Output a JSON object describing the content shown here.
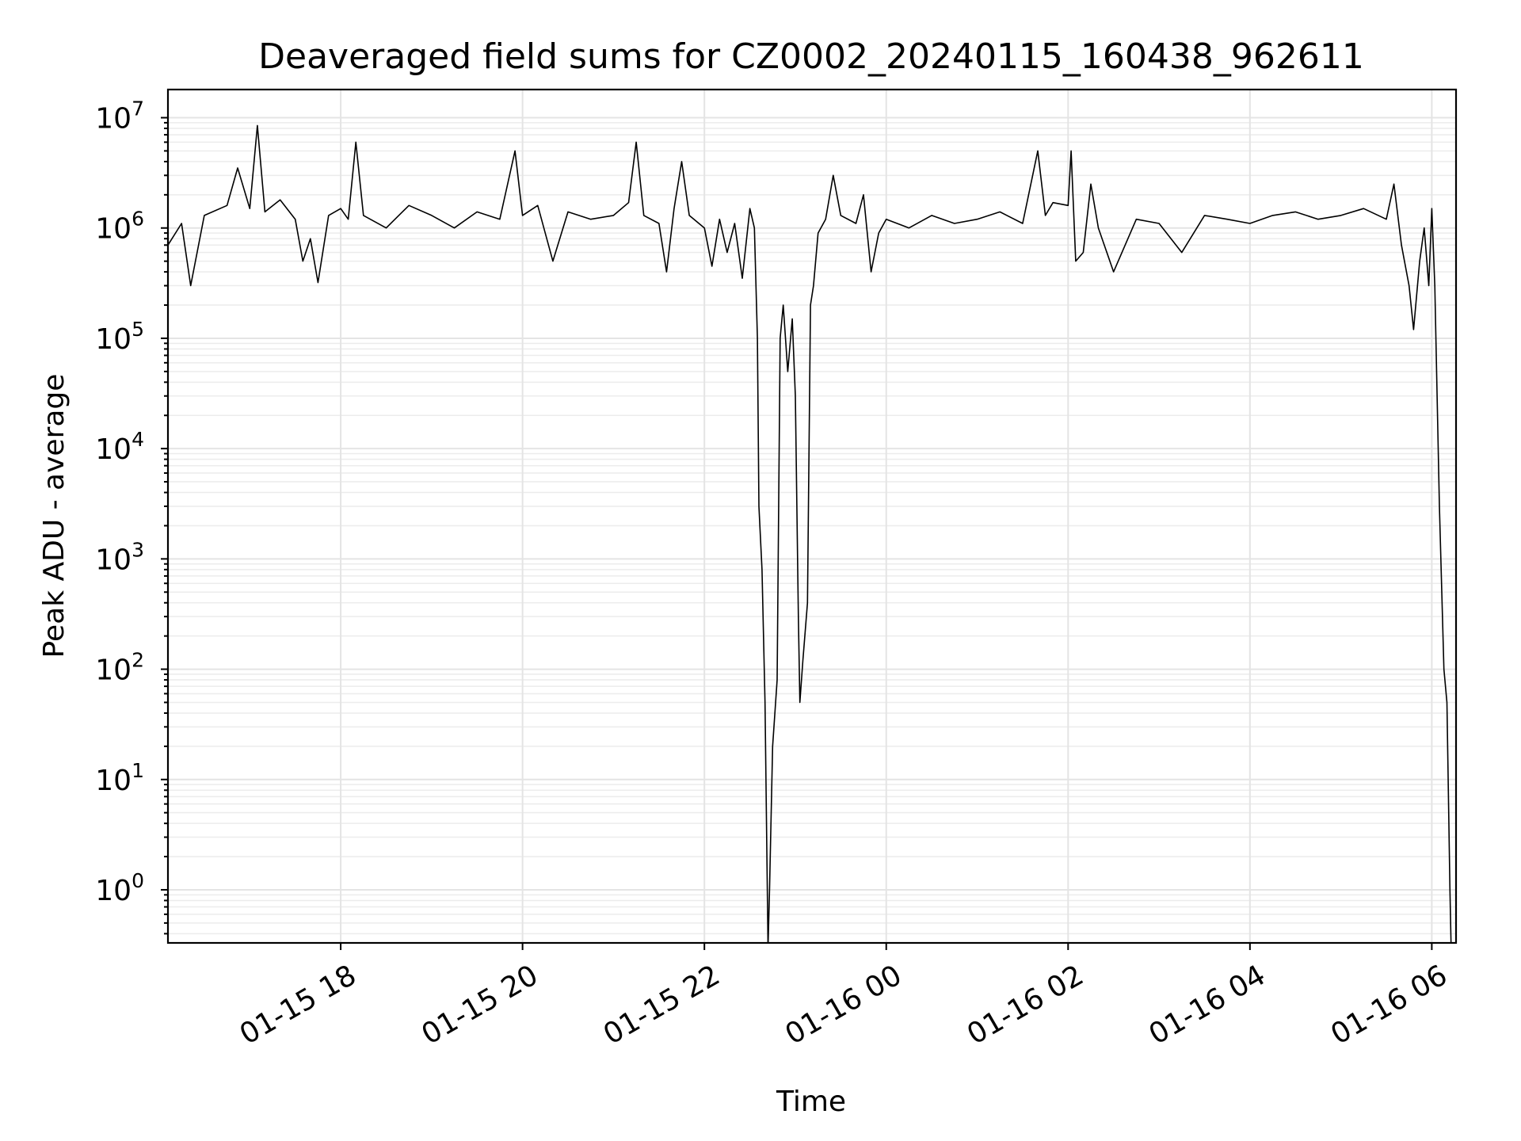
{
  "chart_data": {
    "type": "line",
    "title": "Deaveraged field sums for CZ0002_20240115_160438_962611",
    "xlabel": "Time",
    "ylabel": "Peak ADU - average",
    "yscale": "log",
    "xlim": [
      "2024-01-15 16:06",
      "2024-01-16 06:16"
    ],
    "ylim": [
      0.33,
      18000000
    ],
    "grid": true,
    "x_ticks": [
      {
        "t": "2024-01-15 18:00",
        "label": "01-15 18"
      },
      {
        "t": "2024-01-15 20:00",
        "label": "01-15 20"
      },
      {
        "t": "2024-01-15 22:00",
        "label": "01-15 22"
      },
      {
        "t": "2024-01-16 00:00",
        "label": "01-16 00"
      },
      {
        "t": "2024-01-16 02:00",
        "label": "01-16 02"
      },
      {
        "t": "2024-01-16 04:00",
        "label": "01-16 04"
      },
      {
        "t": "2024-01-16 06:00",
        "label": "01-16 06"
      }
    ],
    "y_ticks": [
      {
        "value": 1,
        "base": "10",
        "exp": "0"
      },
      {
        "value": 10,
        "base": "10",
        "exp": "1"
      },
      {
        "value": 100,
        "base": "10",
        "exp": "2"
      },
      {
        "value": 1000,
        "base": "10",
        "exp": "3"
      },
      {
        "value": 10000,
        "base": "10",
        "exp": "4"
      },
      {
        "value": 100000,
        "base": "10",
        "exp": "5"
      },
      {
        "value": 1000000,
        "base": "10",
        "exp": "6"
      },
      {
        "value": 10000000,
        "base": "10",
        "exp": "7"
      }
    ],
    "series": [
      {
        "color": "#000000",
        "points": [
          [
            "2024-01-15 16:06",
            700000
          ],
          [
            "2024-01-15 16:15",
            1100000
          ],
          [
            "2024-01-15 16:21",
            300000
          ],
          [
            "2024-01-15 16:30",
            1300000
          ],
          [
            "2024-01-15 16:45",
            1600000
          ],
          [
            "2024-01-15 16:52",
            3500000
          ],
          [
            "2024-01-15 17:00",
            1500000
          ],
          [
            "2024-01-15 17:05",
            8500000
          ],
          [
            "2024-01-15 17:10",
            1400000
          ],
          [
            "2024-01-15 17:20",
            1800000
          ],
          [
            "2024-01-15 17:30",
            1200000
          ],
          [
            "2024-01-15 17:35",
            500000
          ],
          [
            "2024-01-15 17:40",
            800000
          ],
          [
            "2024-01-15 17:45",
            320000
          ],
          [
            "2024-01-15 17:52",
            1300000
          ],
          [
            "2024-01-15 18:00",
            1500000
          ],
          [
            "2024-01-15 18:05",
            1200000
          ],
          [
            "2024-01-15 18:10",
            6000000
          ],
          [
            "2024-01-15 18:15",
            1300000
          ],
          [
            "2024-01-15 18:30",
            1000000
          ],
          [
            "2024-01-15 18:45",
            1600000
          ],
          [
            "2024-01-15 19:00",
            1300000
          ],
          [
            "2024-01-15 19:15",
            1000000
          ],
          [
            "2024-01-15 19:30",
            1400000
          ],
          [
            "2024-01-15 19:45",
            1200000
          ],
          [
            "2024-01-15 19:55",
            5000000
          ],
          [
            "2024-01-15 20:00",
            1300000
          ],
          [
            "2024-01-15 20:10",
            1600000
          ],
          [
            "2024-01-15 20:20",
            500000
          ],
          [
            "2024-01-15 20:30",
            1400000
          ],
          [
            "2024-01-15 20:45",
            1200000
          ],
          [
            "2024-01-15 21:00",
            1300000
          ],
          [
            "2024-01-15 21:10",
            1700000
          ],
          [
            "2024-01-15 21:15",
            6000000
          ],
          [
            "2024-01-15 21:20",
            1300000
          ],
          [
            "2024-01-15 21:30",
            1100000
          ],
          [
            "2024-01-15 21:35",
            400000
          ],
          [
            "2024-01-15 21:40",
            1500000
          ],
          [
            "2024-01-15 21:45",
            4000000
          ],
          [
            "2024-01-15 21:50",
            1300000
          ],
          [
            "2024-01-15 22:00",
            1000000
          ],
          [
            "2024-01-15 22:05",
            450000
          ],
          [
            "2024-01-15 22:10",
            1200000
          ],
          [
            "2024-01-15 22:15",
            600000
          ],
          [
            "2024-01-15 22:20",
            1100000
          ],
          [
            "2024-01-15 22:25",
            350000
          ],
          [
            "2024-01-15 22:30",
            1500000
          ],
          [
            "2024-01-15 22:33",
            1000000
          ],
          [
            "2024-01-15 22:35",
            100000
          ],
          [
            "2024-01-15 22:36",
            3000
          ],
          [
            "2024-01-15 22:38",
            800
          ],
          [
            "2024-01-15 22:40",
            50
          ],
          [
            "2024-01-15 22:42",
            0.3
          ],
          [
            "2024-01-15 22:43",
            1
          ],
          [
            "2024-01-15 22:45",
            20
          ],
          [
            "2024-01-15 22:48",
            80
          ],
          [
            "2024-01-15 22:50",
            100000
          ],
          [
            "2024-01-15 22:52",
            200000
          ],
          [
            "2024-01-15 22:55",
            50000
          ],
          [
            "2024-01-15 22:58",
            150000
          ],
          [
            "2024-01-15 23:00",
            30000
          ],
          [
            "2024-01-15 23:02",
            300
          ],
          [
            "2024-01-15 23:03",
            50
          ],
          [
            "2024-01-15 23:05",
            120
          ],
          [
            "2024-01-15 23:08",
            400
          ],
          [
            "2024-01-15 23:10",
            200000
          ],
          [
            "2024-01-15 23:12",
            300000
          ],
          [
            "2024-01-15 23:15",
            900000
          ],
          [
            "2024-01-15 23:20",
            1200000
          ],
          [
            "2024-01-15 23:25",
            3000000
          ],
          [
            "2024-01-15 23:30",
            1300000
          ],
          [
            "2024-01-15 23:40",
            1100000
          ],
          [
            "2024-01-15 23:45",
            2000000
          ],
          [
            "2024-01-15 23:50",
            400000
          ],
          [
            "2024-01-15 23:55",
            900000
          ],
          [
            "2024-01-16 00:00",
            1200000
          ],
          [
            "2024-01-16 00:15",
            1000000
          ],
          [
            "2024-01-16 00:30",
            1300000
          ],
          [
            "2024-01-16 00:45",
            1100000
          ],
          [
            "2024-01-16 01:00",
            1200000
          ],
          [
            "2024-01-16 01:15",
            1400000
          ],
          [
            "2024-01-16 01:30",
            1100000
          ],
          [
            "2024-01-16 01:40",
            5000000
          ],
          [
            "2024-01-16 01:45",
            1300000
          ],
          [
            "2024-01-16 01:50",
            1700000
          ],
          [
            "2024-01-16 02:00",
            1600000
          ],
          [
            "2024-01-16 02:02",
            5000000
          ],
          [
            "2024-01-16 02:05",
            500000
          ],
          [
            "2024-01-16 02:10",
            600000
          ],
          [
            "2024-01-16 02:15",
            2500000
          ],
          [
            "2024-01-16 02:20",
            1000000
          ],
          [
            "2024-01-16 02:30",
            400000
          ],
          [
            "2024-01-16 02:45",
            1200000
          ],
          [
            "2024-01-16 03:00",
            1100000
          ],
          [
            "2024-01-16 03:15",
            600000
          ],
          [
            "2024-01-16 03:30",
            1300000
          ],
          [
            "2024-01-16 03:45",
            1200000
          ],
          [
            "2024-01-16 04:00",
            1100000
          ],
          [
            "2024-01-16 04:15",
            1300000
          ],
          [
            "2024-01-16 04:30",
            1400000
          ],
          [
            "2024-01-16 04:45",
            1200000
          ],
          [
            "2024-01-16 05:00",
            1300000
          ],
          [
            "2024-01-16 05:15",
            1500000
          ],
          [
            "2024-01-16 05:30",
            1200000
          ],
          [
            "2024-01-16 05:35",
            2500000
          ],
          [
            "2024-01-16 05:40",
            700000
          ],
          [
            "2024-01-16 05:45",
            300000
          ],
          [
            "2024-01-16 05:48",
            120000
          ],
          [
            "2024-01-16 05:52",
            500000
          ],
          [
            "2024-01-16 05:55",
            1000000
          ],
          [
            "2024-01-16 05:58",
            300000
          ],
          [
            "2024-01-16 06:00",
            1500000
          ],
          [
            "2024-01-16 06:02",
            300000
          ],
          [
            "2024-01-16 06:05",
            3000
          ],
          [
            "2024-01-16 06:08",
            100
          ],
          [
            "2024-01-16 06:10",
            50
          ],
          [
            "2024-01-16 06:12",
            1
          ],
          [
            "2024-01-16 06:13",
            0.2
          ]
        ]
      }
    ]
  }
}
